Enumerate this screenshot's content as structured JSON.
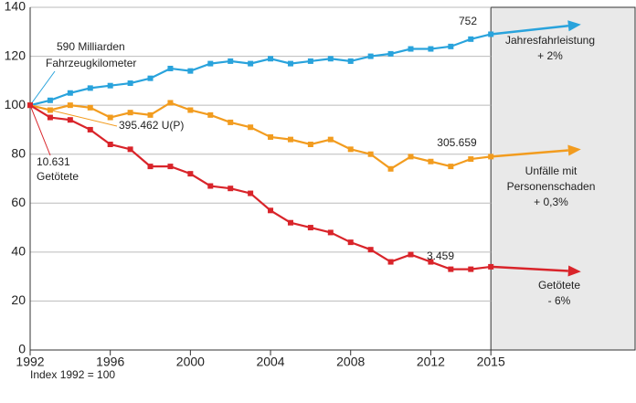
{
  "chart_data": {
    "type": "line",
    "x_label": "Index 1992 = 100",
    "x": [
      1992,
      1993,
      1994,
      1995,
      1996,
      1997,
      1998,
      1999,
      2000,
      2001,
      2002,
      2003,
      2004,
      2005,
      2006,
      2007,
      2008,
      2009,
      2010,
      2011,
      2012,
      2013,
      2014,
      2015
    ],
    "xlim": [
      1992,
      2022.2
    ],
    "xticks": [
      1992,
      1996,
      2000,
      2004,
      2008,
      2012,
      2015
    ],
    "ylim": [
      0,
      140
    ],
    "yticks": [
      0,
      20,
      40,
      60,
      80,
      100,
      120,
      140
    ],
    "grid": true,
    "forecast_from": 2015,
    "arrow_x": 2019.5,
    "series": [
      {
        "color": "#29a3dc",
        "label": [
          "Jahresfahrleistung",
          "+ 2%"
        ],
        "start_label": [
          "590 Milliarden",
          "Fahrzeugkilometer"
        ],
        "end_label": "752",
        "arrow_end": 133,
        "values": [
          100,
          102,
          105,
          107,
          108,
          109,
          111,
          115,
          114,
          117,
          118,
          117,
          119,
          117,
          118,
          119,
          118,
          120,
          121,
          123,
          123,
          124,
          127,
          129
        ]
      },
      {
        "color": "#f29c1f",
        "label": [
          "Unfälle mit",
          "Personenschaden",
          "+ 0,3%"
        ],
        "start_label": [
          "395.462 U(P)"
        ],
        "end_label": "305.659",
        "arrow_end": 82,
        "values": [
          100,
          98,
          100,
          99,
          95,
          97,
          96,
          101,
          98,
          96,
          93,
          91,
          87,
          86,
          84,
          86,
          82,
          80,
          74,
          79,
          77,
          75,
          78,
          79
        ]
      },
      {
        "color": "#d9242a",
        "label": [
          "Getötete",
          "- 6%"
        ],
        "start_label": [
          "10.631",
          "Getötete"
        ],
        "end_label": "3.459",
        "arrow_end": 32,
        "values": [
          100,
          95,
          94,
          90,
          84,
          82,
          75,
          75,
          72,
          67,
          66,
          64,
          57,
          52,
          50,
          48,
          44,
          41,
          36,
          39,
          36,
          33,
          33,
          34
        ]
      }
    ]
  }
}
